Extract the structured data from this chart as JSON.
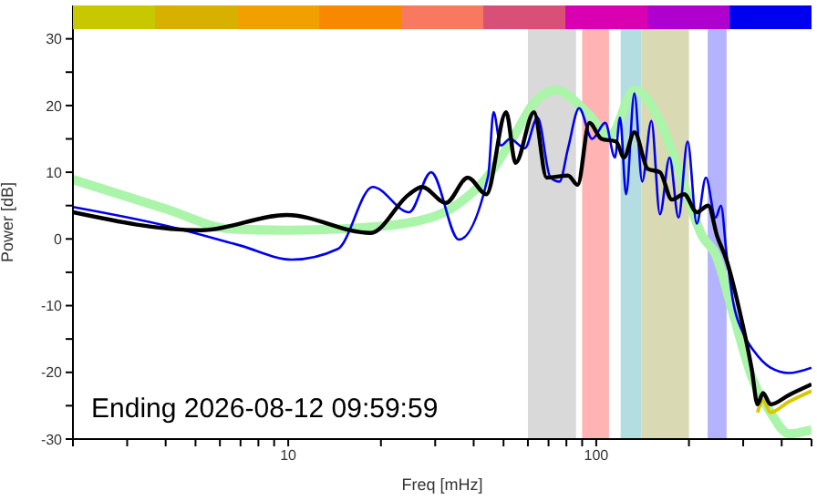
{
  "chart_data": {
    "type": "line",
    "xlabel": "Freq [mHz]",
    "ylabel": "Power [dB]",
    "log": "x",
    "xlim": [
      2,
      500
    ],
    "ylim": [
      -30,
      35
    ],
    "xticks": [
      {
        "value": 2,
        "label": null
      },
      {
        "value": 3,
        "label": null
      },
      {
        "value": 4,
        "label": null
      },
      {
        "value": 5,
        "label": null
      },
      {
        "value": 6,
        "label": null
      },
      {
        "value": 7,
        "label": null
      },
      {
        "value": 8,
        "label": null
      },
      {
        "value": 9,
        "label": null
      },
      10,
      {
        "value": 20,
        "label": null
      },
      {
        "value": 30,
        "label": null
      },
      {
        "value": 40,
        "label": null
      },
      {
        "value": 50,
        "label": null
      },
      {
        "value": 60,
        "label": null
      },
      {
        "value": 70,
        "label": null
      },
      {
        "value": 80,
        "label": null
      },
      {
        "value": 90,
        "label": null
      },
      100,
      {
        "value": 200,
        "label": null
      },
      {
        "value": 300,
        "label": null
      },
      {
        "value": 400,
        "label": null
      },
      {
        "value": 500,
        "label": null
      }
    ],
    "yticks": [
      -30,
      {
        "value": -25,
        "label": null
      },
      -20,
      {
        "value": -15,
        "label": null
      },
      -10,
      {
        "value": -5,
        "label": null
      },
      0,
      {
        "value": 5,
        "label": null
      },
      10,
      {
        "value": 15,
        "label": null
      },
      20,
      {
        "value": 25,
        "label": null
      },
      30
    ],
    "grid": false,
    "marker": "none",
    "line_style": "solid",
    "bands": [
      {
        "axis": "x",
        "from": 60,
        "to": 86,
        "color": "#d9d9d9"
      },
      {
        "axis": "x",
        "from": 90,
        "to": 110,
        "color": "#ffb3b3"
      },
      {
        "axis": "x",
        "from": 120,
        "to": 140,
        "color": "#b3dde0"
      },
      {
        "axis": "x",
        "from": 140,
        "to": 200,
        "color": "#d9d9b3"
      },
      {
        "axis": "x",
        "from": 230,
        "to": 265,
        "color": "#b3b3ff"
      }
    ],
    "series": [
      {
        "color": "#aaf5aa",
        "x": [
          2,
          4,
          6.5,
          10,
          15,
          25,
          35,
          44.6,
          55,
          61.9,
          74,
          93,
          111,
          133,
          161,
          185,
          221,
          244,
          279,
          320,
          368,
          422,
          500
        ],
        "values": [
          8.9,
          4.5,
          1.5,
          1.3,
          1.5,
          2.5,
          5,
          9.5,
          16,
          20,
          22.3,
          19,
          15.5,
          22.3,
          17.7,
          10.5,
          0.4,
          -2.3,
          -11.4,
          -20.7,
          -26,
          -29.2,
          -28.6
        ]
      },
      {
        "color": "#0000ee",
        "x": [
          2,
          4,
          7,
          10.3,
          14.5,
          18.8,
          24.7,
          29.1,
          35.8,
          44.6,
          46.4,
          49,
          52.5,
          58.6,
          64.5,
          71,
          76,
          81,
          88,
          97,
          107,
          115,
          119.5,
          125,
          133,
          141,
          151,
          161,
          173,
          185,
          198,
          212,
          227,
          244,
          254,
          265,
          279,
          299,
          325,
          368,
          422,
          500
        ],
        "values": [
          4.8,
          2,
          -1,
          -3.1,
          -1.5,
          7.8,
          4,
          10,
          -0.1,
          9.5,
          19,
          14,
          15,
          13.6,
          18.2,
          9.2,
          8.6,
          13.6,
          19.6,
          15,
          17.4,
          12.2,
          18.2,
          6.7,
          21.8,
          8.6,
          17.7,
          3.7,
          12.2,
          3.2,
          14.6,
          2.3,
          9.2,
          3.2,
          5,
          -2.3,
          -9.7,
          -14,
          -16.8,
          -19.3,
          -20.1,
          -19.3
        ]
      },
      {
        "color": "#d8c800",
        "x": [
          334,
          348,
          368,
          422,
          500
        ],
        "values": [
          -26,
          -24.2,
          -26,
          -24.4,
          -22.8
        ]
      },
      {
        "color": "#000000",
        "x": [
          2,
          5.2,
          9.9,
          18.5,
          24.7,
          27.2,
          32.5,
          38.3,
          44,
          51,
          54.7,
          62.8,
          69,
          81,
          87,
          95,
          104,
          116,
          123,
          133,
          147,
          161,
          176,
          193,
          212,
          231,
          247,
          265,
          291,
          320,
          334,
          348,
          368,
          422,
          500
        ],
        "values": [
          4,
          1.3,
          3.6,
          0.9,
          6.7,
          7.8,
          5.4,
          9.2,
          6.7,
          19,
          11.4,
          19,
          9.2,
          9.5,
          8.1,
          17.4,
          15,
          14.6,
          12.2,
          16,
          10.5,
          10,
          5.9,
          6.7,
          4,
          5,
          0.4,
          -3.2,
          -10.5,
          -19.6,
          -24.8,
          -23.1,
          -24.8,
          -23.4,
          -21.8
        ]
      }
    ],
    "annotations": [
      "Ending 2026-08-12 09:59:59"
    ]
  }
}
